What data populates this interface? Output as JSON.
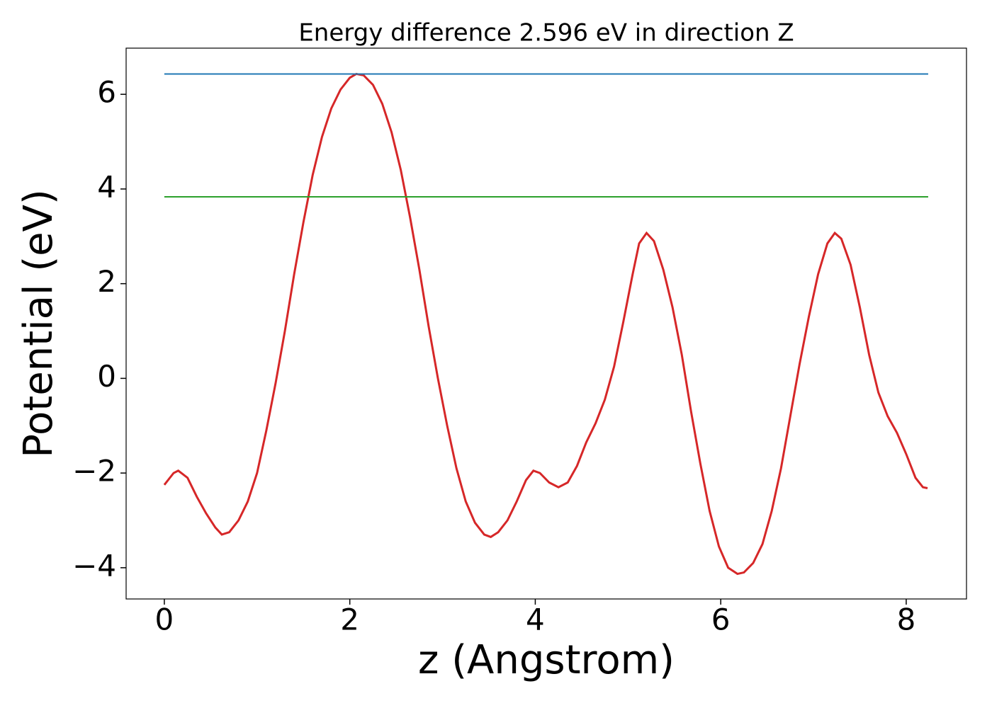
{
  "chart_data": {
    "type": "line",
    "title": "Energy difference 2.596 eV in direction Z",
    "x_label": "z (Angstrom)",
    "y_label": "Potential (eV)",
    "xlim": [
      -0.412,
      8.65
    ],
    "ylim": [
      -4.66,
      6.975
    ],
    "xticks": [
      0,
      2,
      4,
      6,
      8
    ],
    "yticks": [
      {
        "value": -4,
        "label": "−4"
      },
      {
        "value": -2,
        "label": "−2"
      },
      0,
      2,
      4,
      6
    ],
    "series": [
      {
        "color": "#d62728",
        "x": [
          0,
          0.1,
          0.15,
          0.25,
          0.35,
          0.45,
          0.55,
          0.62,
          0.7,
          0.8,
          0.9,
          1.0,
          1.1,
          1.2,
          1.3,
          1.4,
          1.5,
          1.6,
          1.7,
          1.8,
          1.9,
          2.0,
          2.07,
          2.15,
          2.25,
          2.35,
          2.45,
          2.55,
          2.65,
          2.75,
          2.85,
          2.95,
          3.05,
          3.15,
          3.25,
          3.35,
          3.45,
          3.52,
          3.6,
          3.7,
          3.8,
          3.9,
          3.98,
          4.05,
          4.15,
          4.25,
          4.35,
          4.45,
          4.55,
          4.65,
          4.75,
          4.85,
          4.95,
          5.05,
          5.12,
          5.2,
          5.28,
          5.38,
          5.48,
          5.58,
          5.68,
          5.78,
          5.88,
          5.98,
          6.08,
          6.18,
          6.25,
          6.35,
          6.45,
          6.55,
          6.65,
          6.75,
          6.85,
          6.95,
          7.05,
          7.15,
          7.23,
          7.3,
          7.4,
          7.5,
          7.6,
          7.7,
          7.8,
          7.9,
          8.0,
          8.1,
          8.18,
          8.23
        ],
        "values": [
          -2.25,
          -2.0,
          -1.95,
          -2.1,
          -2.5,
          -2.85,
          -3.15,
          -3.3,
          -3.25,
          -3.0,
          -2.6,
          -2.0,
          -1.1,
          -0.1,
          1.0,
          2.2,
          3.3,
          4.3,
          5.1,
          5.7,
          6.1,
          6.35,
          6.43,
          6.4,
          6.2,
          5.8,
          5.2,
          4.4,
          3.4,
          2.3,
          1.1,
          0,
          -1.0,
          -1.9,
          -2.6,
          -3.05,
          -3.3,
          -3.35,
          -3.25,
          -3.0,
          -2.6,
          -2.15,
          -1.95,
          -2.0,
          -2.2,
          -2.3,
          -2.2,
          -1.85,
          -1.35,
          -0.95,
          -0.45,
          0.25,
          1.2,
          2.2,
          2.85,
          3.07,
          2.9,
          2.3,
          1.5,
          0.5,
          -0.7,
          -1.8,
          -2.8,
          -3.55,
          -4.0,
          -4.13,
          -4.1,
          -3.9,
          -3.5,
          -2.8,
          -1.9,
          -0.8,
          0.3,
          1.3,
          2.2,
          2.85,
          3.07,
          2.95,
          2.4,
          1.5,
          0.5,
          -0.3,
          -0.8,
          -1.15,
          -1.6,
          -2.1,
          -2.3,
          -2.32
        ]
      },
      {
        "color": "#1f77b4",
        "x": [
          0,
          8.237
        ],
        "values": [
          6.43,
          6.43
        ]
      },
      {
        "color": "#2ca02c",
        "x": [
          0,
          8.237
        ],
        "values": [
          3.834,
          3.834
        ]
      }
    ]
  }
}
